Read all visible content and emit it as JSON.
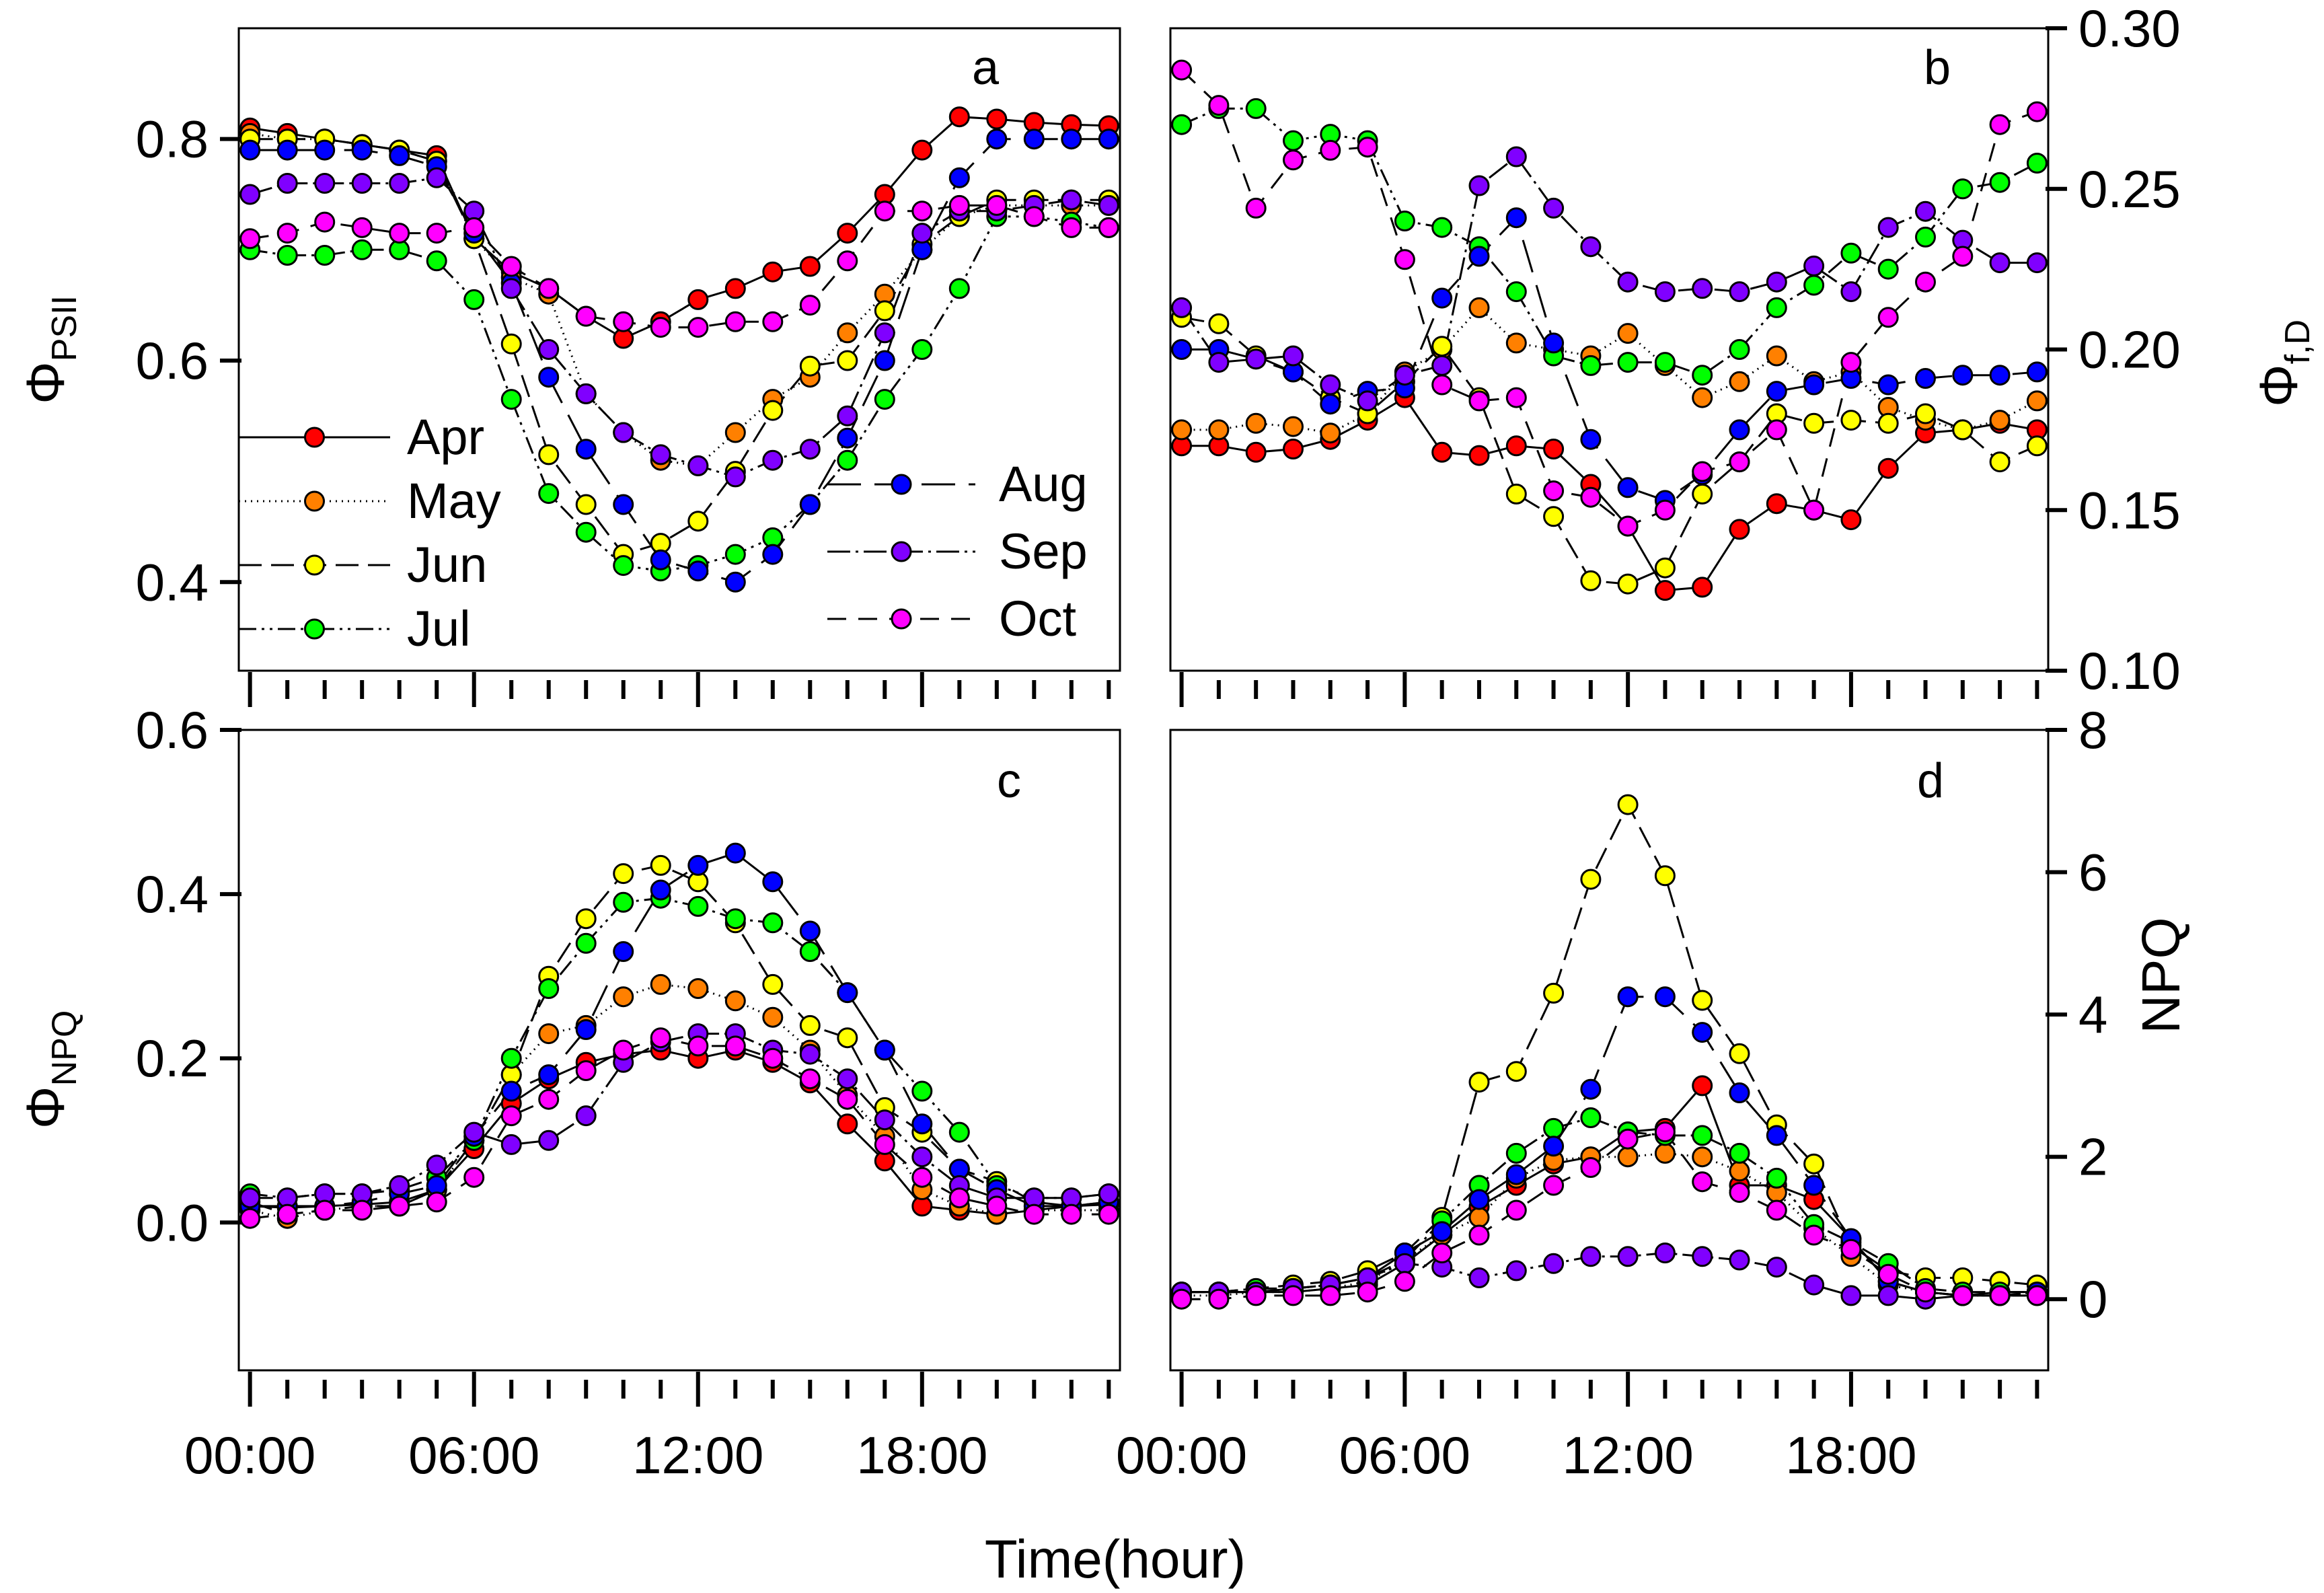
{
  "chart_data": [
    {
      "panel": "a",
      "type": "line",
      "ylabel_symbol": "Φ",
      "ylabel_subscript": "PSII",
      "y_ticks": [
        "0.4",
        "0.6",
        "0.8"
      ],
      "y_tick_values": [
        0.4,
        0.6,
        0.8
      ],
      "y_axis_side": "left",
      "ylim": [
        0.32,
        0.9
      ],
      "xlim": [
        -0.3,
        23.3
      ],
      "x": [
        0,
        1,
        2,
        3,
        4,
        5,
        6,
        7,
        8,
        9,
        10,
        11,
        12,
        13,
        14,
        15,
        16,
        17,
        18,
        19,
        20,
        21,
        22,
        23
      ],
      "series": [
        {
          "name": "Apr",
          "color": "#ff0000",
          "dash": "none",
          "values": [
            0.81,
            0.805,
            0.8,
            0.795,
            0.79,
            0.785,
            0.71,
            0.68,
            0.665,
            0.64,
            0.62,
            0.635,
            0.655,
            0.665,
            0.68,
            0.685,
            0.715,
            0.75,
            0.79,
            0.82,
            0.818,
            0.815,
            0.813,
            0.812
          ]
        },
        {
          "name": "May",
          "color": "#ff8000",
          "dash": "2,7",
          "values": [
            0.805,
            0.8,
            0.8,
            0.795,
            0.79,
            0.78,
            0.71,
            0.675,
            0.66,
            0.57,
            0.535,
            0.51,
            0.505,
            0.535,
            0.565,
            0.585,
            0.625,
            0.66,
            0.7,
            0.73,
            0.74,
            0.74,
            0.74,
            0.74
          ]
        },
        {
          "name": "Jun",
          "color": "#ffff00",
          "dash": "34,14",
          "values": [
            0.8,
            0.8,
            0.8,
            0.795,
            0.79,
            0.78,
            0.71,
            0.615,
            0.515,
            0.47,
            0.425,
            0.435,
            0.455,
            0.5,
            0.555,
            0.595,
            0.6,
            0.645,
            0.705,
            0.73,
            0.745,
            0.745,
            0.745,
            0.745
          ]
        },
        {
          "name": "Jul",
          "color": "#00ff00",
          "dash": "26,8,4,8,4,8",
          "values": [
            0.7,
            0.695,
            0.695,
            0.7,
            0.7,
            0.69,
            0.655,
            0.565,
            0.48,
            0.445,
            0.415,
            0.41,
            0.415,
            0.425,
            0.44,
            0.47,
            0.51,
            0.565,
            0.61,
            0.665,
            0.73,
            0.73,
            0.725,
            0.72
          ]
        },
        {
          "name": "Aug",
          "color": "#0000ff",
          "dash": "50,20",
          "values": [
            0.79,
            0.79,
            0.79,
            0.79,
            0.785,
            0.775,
            0.715,
            0.67,
            0.585,
            0.52,
            0.47,
            0.42,
            0.41,
            0.4,
            0.425,
            0.47,
            0.53,
            0.6,
            0.7,
            0.765,
            0.8,
            0.8,
            0.8,
            0.8
          ]
        },
        {
          "name": "Sep",
          "color": "#8000ff",
          "dash": "34,8,4,8",
          "values": [
            0.75,
            0.76,
            0.76,
            0.76,
            0.76,
            0.765,
            0.735,
            0.665,
            0.61,
            0.57,
            0.535,
            0.515,
            0.505,
            0.495,
            0.51,
            0.52,
            0.55,
            0.625,
            0.715,
            0.735,
            0.735,
            0.74,
            0.745,
            0.74
          ]
        },
        {
          "name": "Oct",
          "color": "#ff00ff",
          "dash": "28,18",
          "values": [
            0.71,
            0.715,
            0.725,
            0.72,
            0.715,
            0.715,
            0.72,
            0.685,
            0.665,
            0.64,
            0.635,
            0.63,
            0.63,
            0.635,
            0.635,
            0.65,
            0.69,
            0.735,
            0.735,
            0.74,
            0.74,
            0.73,
            0.72,
            0.72
          ]
        }
      ],
      "legend": [
        {
          "series": "Apr",
          "label": "Apr"
        },
        {
          "series": "May",
          "label": "May"
        },
        {
          "series": "Jun",
          "label": "Jun"
        },
        {
          "series": "Jul",
          "label": "Jul"
        },
        {
          "series": "Aug",
          "label": "Aug"
        },
        {
          "series": "Sep",
          "label": "Sep"
        },
        {
          "series": "Oct",
          "label": "Oct"
        }
      ]
    },
    {
      "panel": "b",
      "type": "line",
      "ylabel_symbol": "Φ",
      "ylabel_subscript": "f,D",
      "y_ticks": [
        "0.10",
        "0.15",
        "0.20",
        "0.25",
        "0.30"
      ],
      "y_tick_values": [
        0.1,
        0.15,
        0.2,
        0.25,
        0.3
      ],
      "y_axis_side": "right",
      "ylim": [
        0.1,
        0.3
      ],
      "xlim": [
        -0.3,
        23.3
      ],
      "x": [
        0,
        1,
        2,
        3,
        4,
        5,
        6,
        7,
        8,
        9,
        10,
        11,
        12,
        13,
        14,
        15,
        16,
        17,
        18,
        19,
        20,
        21,
        22,
        23
      ],
      "series": [
        {
          "name": "Apr",
          "color": "#ff0000",
          "dash": "none",
          "values": [
            0.17,
            0.17,
            0.168,
            0.169,
            0.172,
            0.178,
            0.185,
            0.168,
            0.167,
            0.17,
            0.169,
            0.158,
            0.145,
            0.125,
            0.126,
            0.144,
            0.152,
            0.15,
            0.147,
            0.163,
            0.174,
            0.175,
            0.177,
            0.175
          ]
        },
        {
          "name": "May",
          "color": "#ff8000",
          "dash": "2,7",
          "values": [
            0.175,
            0.175,
            0.177,
            0.176,
            0.174,
            0.18,
            0.193,
            0.2,
            0.213,
            0.202,
            0.2,
            0.198,
            0.205,
            0.195,
            0.185,
            0.19,
            0.198,
            0.19,
            0.193,
            0.182,
            0.178,
            0.175,
            0.178,
            0.184
          ]
        },
        {
          "name": "Jun",
          "color": "#ffff00",
          "dash": "34,14",
          "values": [
            0.21,
            0.208,
            0.198,
            0.193,
            0.185,
            0.18,
            0.19,
            0.201,
            0.185,
            0.155,
            0.148,
            0.128,
            0.127,
            0.132,
            0.155,
            0.165,
            0.18,
            0.177,
            0.178,
            0.177,
            0.18,
            0.175,
            0.165,
            0.17
          ]
        },
        {
          "name": "Jul",
          "color": "#00ff00",
          "dash": "26,8,4,8,4,8",
          "values": [
            0.27,
            0.275,
            0.275,
            0.265,
            0.267,
            0.265,
            0.24,
            0.238,
            0.232,
            0.218,
            0.198,
            0.195,
            0.196,
            0.196,
            0.192,
            0.2,
            0.213,
            0.22,
            0.23,
            0.225,
            0.235,
            0.25,
            0.252,
            0.258
          ]
        },
        {
          "name": "Aug",
          "color": "#0000ff",
          "dash": "50,20",
          "values": [
            0.2,
            0.2,
            0.197,
            0.193,
            0.183,
            0.187,
            0.188,
            0.216,
            0.229,
            0.241,
            0.202,
            0.172,
            0.157,
            0.153,
            0.161,
            0.175,
            0.187,
            0.189,
            0.191,
            0.189,
            0.191,
            0.192,
            0.192,
            0.193
          ]
        },
        {
          "name": "Sep",
          "color": "#8000ff",
          "dash": "34,8,4,8",
          "values": [
            0.213,
            0.196,
            0.197,
            0.198,
            0.189,
            0.184,
            0.192,
            0.195,
            0.251,
            0.26,
            0.244,
            0.232,
            0.221,
            0.218,
            0.219,
            0.218,
            0.221,
            0.226,
            0.218,
            0.238,
            0.243,
            0.234,
            0.227,
            0.227
          ]
        },
        {
          "name": "Oct",
          "color": "#ff00ff",
          "dash": "28,18",
          "values": [
            0.287,
            0.276,
            0.244,
            0.259,
            0.262,
            0.263,
            0.228,
            0.189,
            0.184,
            0.185,
            0.156,
            0.154,
            0.145,
            0.15,
            0.162,
            0.165,
            0.175,
            0.15,
            0.196,
            0.21,
            0.221,
            0.229,
            0.27,
            0.274
          ]
        }
      ]
    },
    {
      "panel": "c",
      "type": "line",
      "ylabel_symbol": "Φ",
      "ylabel_subscript": "NPQ",
      "y_ticks": [
        "0.0",
        "0.2",
        "0.4",
        "0.6"
      ],
      "y_tick_values": [
        0.0,
        0.2,
        0.4,
        0.6
      ],
      "y_axis_side": "left",
      "ylim": [
        -0.18,
        0.6
      ],
      "xlim": [
        -0.3,
        23.3
      ],
      "x": [
        0,
        1,
        2,
        3,
        4,
        5,
        6,
        7,
        8,
        9,
        10,
        11,
        12,
        13,
        14,
        15,
        16,
        17,
        18,
        19,
        20,
        21,
        22,
        23
      ],
      "series": [
        {
          "name": "Apr",
          "color": "#ff0000",
          "dash": "none",
          "values": [
            0.02,
            0.018,
            0.02,
            0.022,
            0.025,
            0.04,
            0.09,
            0.145,
            0.175,
            0.195,
            0.205,
            0.21,
            0.2,
            0.21,
            0.195,
            0.17,
            0.12,
            0.075,
            0.02,
            0.015,
            0.01,
            0.015,
            0.02,
            0.022
          ]
        },
        {
          "name": "May",
          "color": "#ff8000",
          "dash": "2,7",
          "values": [
            0.015,
            0.005,
            0.015,
            0.02,
            0.02,
            0.04,
            0.1,
            0.18,
            0.23,
            0.24,
            0.275,
            0.29,
            0.285,
            0.27,
            0.25,
            0.21,
            0.155,
            0.105,
            0.04,
            0.02,
            0.01,
            0.015,
            0.015,
            0.015
          ]
        },
        {
          "name": "Jun",
          "color": "#ffff00",
          "dash": "34,14",
          "values": [
            0.025,
            0.01,
            0.015,
            0.02,
            0.02,
            0.04,
            0.1,
            0.18,
            0.3,
            0.37,
            0.425,
            0.435,
            0.415,
            0.365,
            0.29,
            0.24,
            0.225,
            0.14,
            0.11,
            0.065,
            0.05,
            0.025,
            0.02,
            0.025
          ]
        },
        {
          "name": "Jul",
          "color": "#00ff00",
          "dash": "26,8,4,8,4,8",
          "values": [
            0.035,
            0.03,
            0.035,
            0.035,
            0.04,
            0.055,
            0.1,
            0.2,
            0.285,
            0.34,
            0.39,
            0.395,
            0.385,
            0.37,
            0.365,
            0.33,
            0.28,
            0.21,
            0.16,
            0.11,
            0.045,
            0.03,
            0.03,
            0.035
          ]
        },
        {
          "name": "Aug",
          "color": "#0000ff",
          "dash": "50,20",
          "values": [
            0.02,
            0.02,
            0.02,
            0.025,
            0.035,
            0.045,
            0.105,
            0.16,
            0.18,
            0.235,
            0.33,
            0.405,
            0.435,
            0.45,
            0.415,
            0.355,
            0.28,
            0.21,
            0.12,
            0.065,
            0.04,
            0.02,
            0.02,
            0.025
          ]
        },
        {
          "name": "Sep",
          "color": "#8000ff",
          "dash": "34,8,4,8",
          "values": [
            0.03,
            0.03,
            0.035,
            0.035,
            0.045,
            0.07,
            0.11,
            0.095,
            0.1,
            0.13,
            0.195,
            0.22,
            0.23,
            0.23,
            0.21,
            0.205,
            0.175,
            0.125,
            0.08,
            0.045,
            0.03,
            0.03,
            0.03,
            0.035
          ]
        },
        {
          "name": "Oct",
          "color": "#ff00ff",
          "dash": "28,18",
          "values": [
            0.005,
            0.01,
            0.015,
            0.015,
            0.02,
            0.025,
            0.055,
            0.13,
            0.15,
            0.185,
            0.21,
            0.225,
            0.215,
            0.215,
            0.2,
            0.175,
            0.15,
            0.095,
            0.055,
            0.03,
            0.02,
            0.01,
            0.01,
            0.01
          ]
        }
      ]
    },
    {
      "panel": "d",
      "type": "line",
      "ylabel": "NPQ",
      "y_ticks": [
        "0",
        "2",
        "4",
        "6",
        "8"
      ],
      "y_tick_values": [
        0,
        2,
        4,
        6,
        8
      ],
      "y_axis_side": "right",
      "ylim": [
        -1.0,
        8.0
      ],
      "xlim": [
        -0.3,
        23.3
      ],
      "x": [
        0,
        1,
        2,
        3,
        4,
        5,
        6,
        7,
        8,
        9,
        10,
        11,
        12,
        13,
        14,
        15,
        16,
        17,
        18,
        19,
        20,
        21,
        22,
        23
      ],
      "series": [
        {
          "name": "Apr",
          "color": "#ff0000",
          "dash": "none",
          "values": [
            0.1,
            0.1,
            0.1,
            0.1,
            0.15,
            0.2,
            0.5,
            0.9,
            1.3,
            1.6,
            1.9,
            2.0,
            2.35,
            2.4,
            3.0,
            1.6,
            1.6,
            1.4,
            0.85,
            0.25,
            0.1,
            0.05,
            0.1,
            0.1
          ]
        },
        {
          "name": "May",
          "color": "#ff8000",
          "dash": "2,7",
          "values": [
            0.05,
            0.05,
            0.1,
            0.1,
            0.15,
            0.25,
            0.55,
            0.9,
            1.15,
            1.7,
            1.95,
            2.0,
            2.0,
            2.05,
            2.0,
            1.8,
            1.5,
            1.0,
            0.6,
            0.2,
            0.1,
            0.05,
            0.05,
            0.1
          ]
        },
        {
          "name": "Jun",
          "color": "#ffff00",
          "dash": "34,14",
          "values": [
            0.1,
            0.1,
            0.15,
            0.2,
            0.25,
            0.4,
            0.65,
            1.15,
            3.05,
            3.2,
            4.3,
            5.9,
            6.95,
            5.95,
            4.2,
            3.45,
            2.45,
            1.9,
            0.75,
            0.4,
            0.3,
            0.3,
            0.25,
            0.2
          ]
        },
        {
          "name": "Jul",
          "color": "#00ff00",
          "dash": "26,8,4,8,4,8",
          "values": [
            0.1,
            0.1,
            0.15,
            0.15,
            0.2,
            0.3,
            0.55,
            1.1,
            1.6,
            2.05,
            2.4,
            2.55,
            2.35,
            2.3,
            2.3,
            2.05,
            1.7,
            1.05,
            0.8,
            0.5,
            0.15,
            0.1,
            0.1,
            0.1
          ]
        },
        {
          "name": "Aug",
          "color": "#0000ff",
          "dash": "50,20",
          "values": [
            0.1,
            0.1,
            0.1,
            0.15,
            0.2,
            0.3,
            0.65,
            0.95,
            1.4,
            1.75,
            2.15,
            2.95,
            4.25,
            4.25,
            3.75,
            2.9,
            2.3,
            1.6,
            0.85,
            0.25,
            0.1,
            0.05,
            0.05,
            0.1
          ]
        },
        {
          "name": "Sep",
          "color": "#8000ff",
          "dash": "34,8,4,8",
          "values": [
            0.1,
            0.1,
            0.1,
            0.15,
            0.2,
            0.3,
            0.5,
            0.45,
            0.3,
            0.4,
            0.5,
            0.6,
            0.6,
            0.65,
            0.6,
            0.55,
            0.45,
            0.2,
            0.05,
            0.05,
            0.0,
            0.05,
            0.05,
            0.05
          ]
        },
        {
          "name": "Oct",
          "color": "#ff00ff",
          "dash": "28,18",
          "values": [
            0.0,
            0.0,
            0.05,
            0.05,
            0.05,
            0.1,
            0.25,
            0.65,
            0.9,
            1.25,
            1.6,
            1.85,
            2.25,
            2.35,
            1.65,
            1.5,
            1.25,
            0.9,
            0.7,
            0.35,
            0.1,
            0.05,
            0.05,
            0.05
          ]
        }
      ]
    }
  ],
  "x_axis": {
    "title": "Time(hour)",
    "ticks": [
      "00:00",
      "06:00",
      "12:00",
      "18:00"
    ],
    "tick_values": [
      0,
      6,
      12,
      18
    ]
  }
}
